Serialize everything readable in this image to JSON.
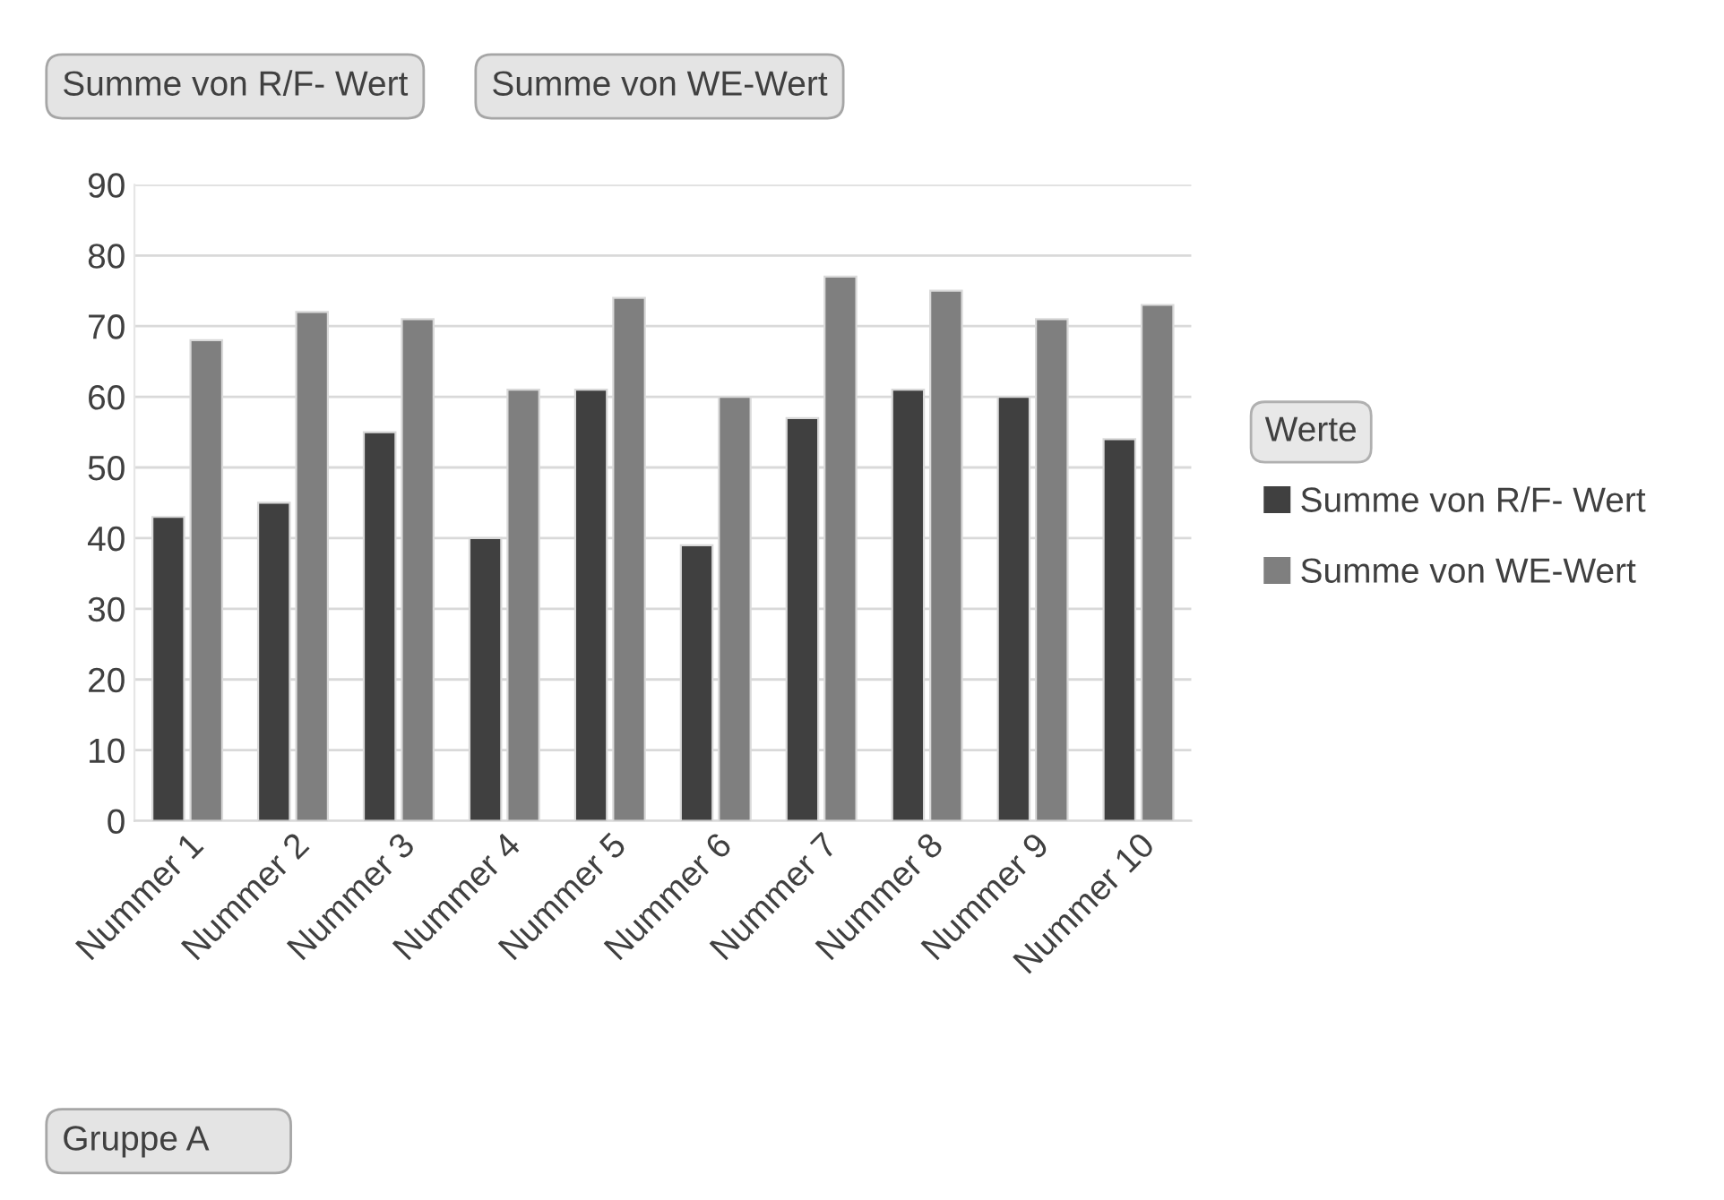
{
  "chart_data": {
    "type": "bar",
    "categories": [
      "Nummer 1",
      "Nummer 2",
      "Nummer 3",
      "Nummer 4",
      "Nummer 5",
      "Nummer 6",
      "Nummer 7",
      "Nummer 8",
      "Nummer 9",
      "Nummer 10"
    ],
    "series": [
      {
        "name": "Summe von R/F- Wert",
        "color": "#404040",
        "values": [
          43,
          45,
          55,
          40,
          61,
          39,
          57,
          61,
          60,
          54
        ]
      },
      {
        "name": "Summe von WE-Wert",
        "color": "#7f7f7f",
        "values": [
          68,
          72,
          71,
          61,
          74,
          60,
          77,
          75,
          71,
          73
        ]
      }
    ],
    "ylim": [
      0,
      90
    ],
    "yticks": [
      0,
      10,
      20,
      30,
      40,
      50,
      60,
      70,
      80,
      90
    ],
    "grid": "y",
    "legend": "right",
    "legend_title": "Werte",
    "annotations": [
      "Summe von R/F- Wert",
      "Summe von WE-Wert",
      "Gruppe A"
    ]
  }
}
